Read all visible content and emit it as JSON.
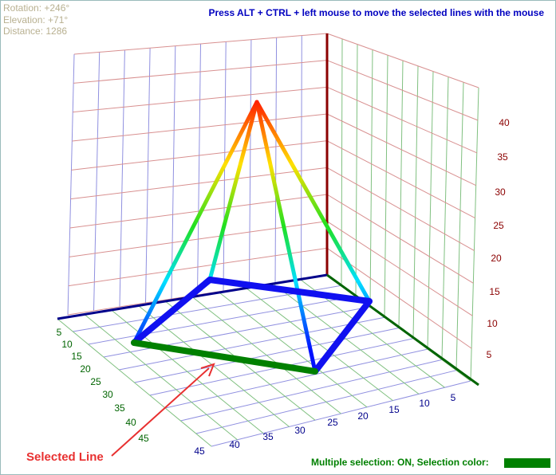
{
  "info": {
    "rotation": "Rotation:  +246°",
    "elevation": "Elevation: +71°",
    "distance": "Distance:  1286"
  },
  "instruction": "Press ALT + CTRL + left mouse to move the selected lines with the mouse",
  "z_ticks": [
    "40",
    "35",
    "30",
    "25",
    "20",
    "15",
    "10",
    "5"
  ],
  "left_ticks": [
    "5",
    "10",
    "15",
    "20",
    "25",
    "30",
    "35",
    "40",
    "45"
  ],
  "bottom_ticks": [
    "45",
    "40",
    "35",
    "30",
    "25",
    "20",
    "15",
    "10",
    "5"
  ],
  "annotation": "Selected Line",
  "status": "Multiple selection: ON, Selection color:"
}
